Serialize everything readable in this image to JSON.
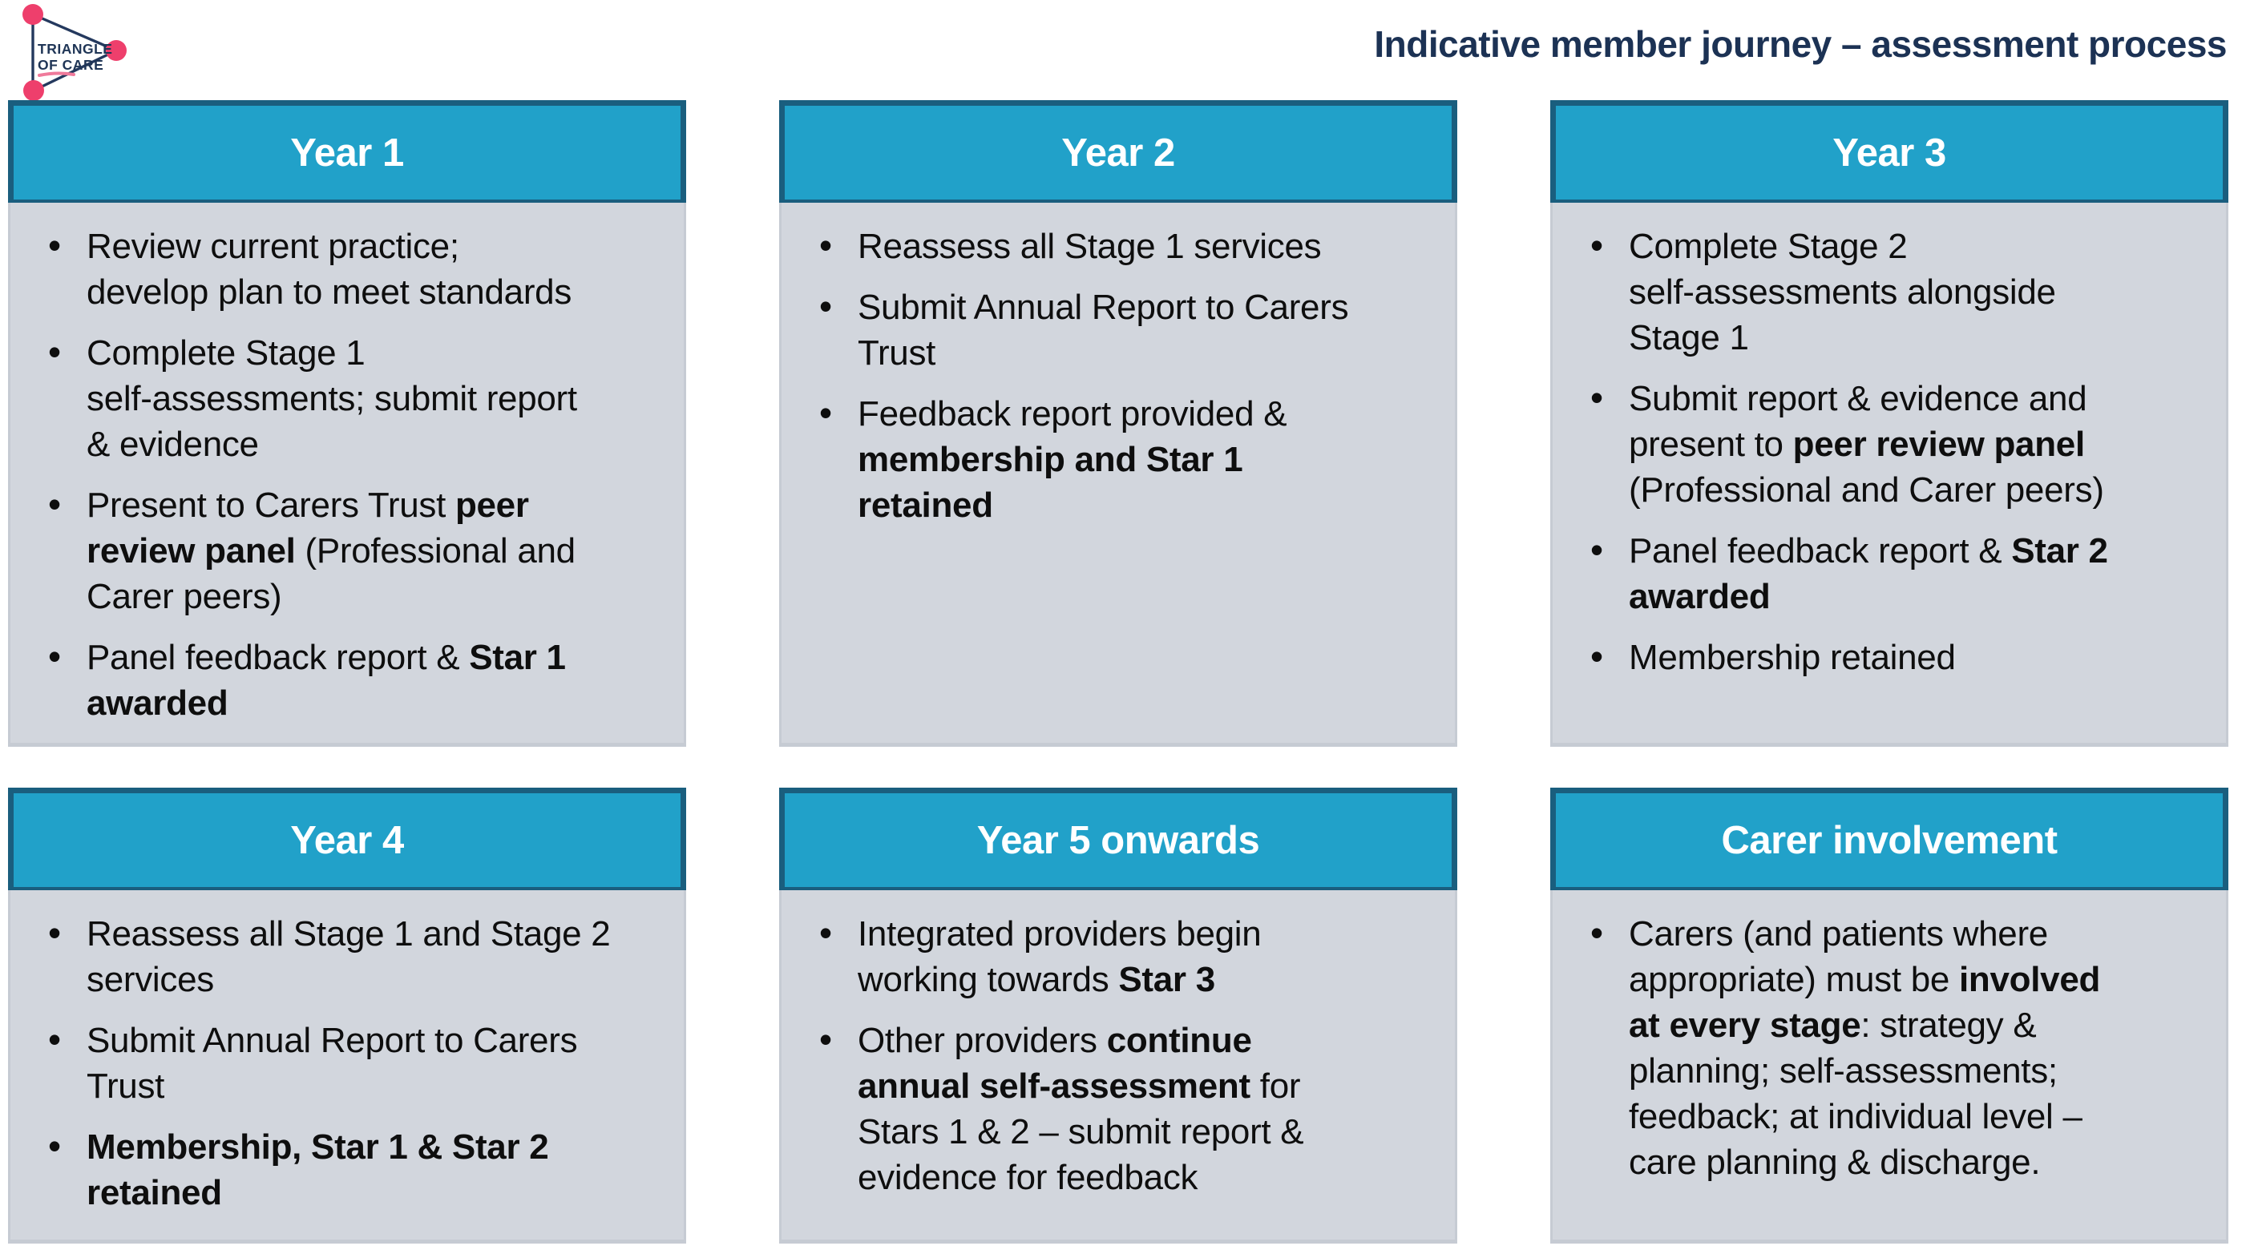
{
  "header": {
    "title": "Indicative member journey – assessment process"
  },
  "logo": {
    "line1": "TRIANGLE",
    "line2": "OF CARE"
  },
  "colors": {
    "header_fill": "#21A1C9",
    "header_border": "#1A5E7E",
    "body_fill": "#D2D6DD",
    "body_edge": "#C6CBD3",
    "title_navy": "#1C3254",
    "logo_navy": "#1F3556",
    "logo_pink": "#EE3F6C",
    "logo_pink_underline": "#F07A9B",
    "bullet_text": "#0E0E0E",
    "header_text": "#FFFFFF"
  },
  "boxes": [
    {
      "title": "Year 1",
      "bullets": [
        {
          "segments": [
            {
              "text": "Review current practice; develop plan to meet standards",
              "bold": false
            }
          ]
        },
        {
          "segments": [
            {
              "text": "Complete Stage 1 self-assessments; submit report & evidence",
              "bold": false
            }
          ]
        },
        {
          "segments": [
            {
              "text": "Present to Carers Trust ",
              "bold": false
            },
            {
              "text": "peer review panel",
              "bold": true
            },
            {
              "text": " (Professional and Carer peers)",
              "bold": false
            }
          ]
        },
        {
          "segments": [
            {
              "text": "Panel feedback report & ",
              "bold": false
            },
            {
              "text": "Star 1 awarded",
              "bold": true
            }
          ]
        }
      ]
    },
    {
      "title": "Year 2",
      "bullets": [
        {
          "segments": [
            {
              "text": "Reassess all Stage 1 services",
              "bold": false
            }
          ]
        },
        {
          "segments": [
            {
              "text": "Submit Annual Report to Carers Trust",
              "bold": false
            }
          ]
        },
        {
          "segments": [
            {
              "text": "Feedback report provided & ",
              "bold": false
            },
            {
              "text": "membership and Star 1 retained",
              "bold": true
            }
          ]
        }
      ]
    },
    {
      "title": "Year 3",
      "bullets": [
        {
          "segments": [
            {
              "text": "Complete Stage 2 self-assessments alongside Stage 1",
              "bold": false
            }
          ]
        },
        {
          "segments": [
            {
              "text": "Submit report & evidence and present to ",
              "bold": false
            },
            {
              "text": "peer review panel",
              "bold": true
            },
            {
              "text": " (Professional and Carer peers)",
              "bold": false
            }
          ]
        },
        {
          "segments": [
            {
              "text": "Panel feedback report & ",
              "bold": false
            },
            {
              "text": "Star 2 awarded",
              "bold": true
            }
          ]
        },
        {
          "segments": [
            {
              "text": "Membership retained",
              "bold": false
            }
          ]
        }
      ]
    },
    {
      "title": "Year 4",
      "bullets": [
        {
          "segments": [
            {
              "text": "Reassess all Stage 1 and Stage 2 services",
              "bold": false
            }
          ]
        },
        {
          "segments": [
            {
              "text": "Submit Annual Report to Carers Trust",
              "bold": false
            }
          ]
        },
        {
          "segments": [
            {
              "text": "Membership, Star 1 & Star 2 retained",
              "bold": true
            }
          ]
        }
      ]
    },
    {
      "title": "Year 5 onwards",
      "bullets": [
        {
          "segments": [
            {
              "text": "Integrated providers begin working towards ",
              "bold": false
            },
            {
              "text": "Star 3",
              "bold": true
            }
          ]
        },
        {
          "segments": [
            {
              "text": "Other providers ",
              "bold": false
            },
            {
              "text": "continue annual self-assessment",
              "bold": true
            },
            {
              "text": " for Stars 1 & 2 – submit report & evidence for feedback",
              "bold": false
            }
          ]
        }
      ]
    },
    {
      "title": "Carer involvement",
      "bullets": [
        {
          "segments": [
            {
              "text": "Carers (and patients where appropriate) must be ",
              "bold": false
            },
            {
              "text": "involved at every stage",
              "bold": true
            },
            {
              "text": ": strategy & planning; self-assessments; feedback; at individual level – care planning & discharge.",
              "bold": false
            }
          ]
        }
      ]
    }
  ]
}
